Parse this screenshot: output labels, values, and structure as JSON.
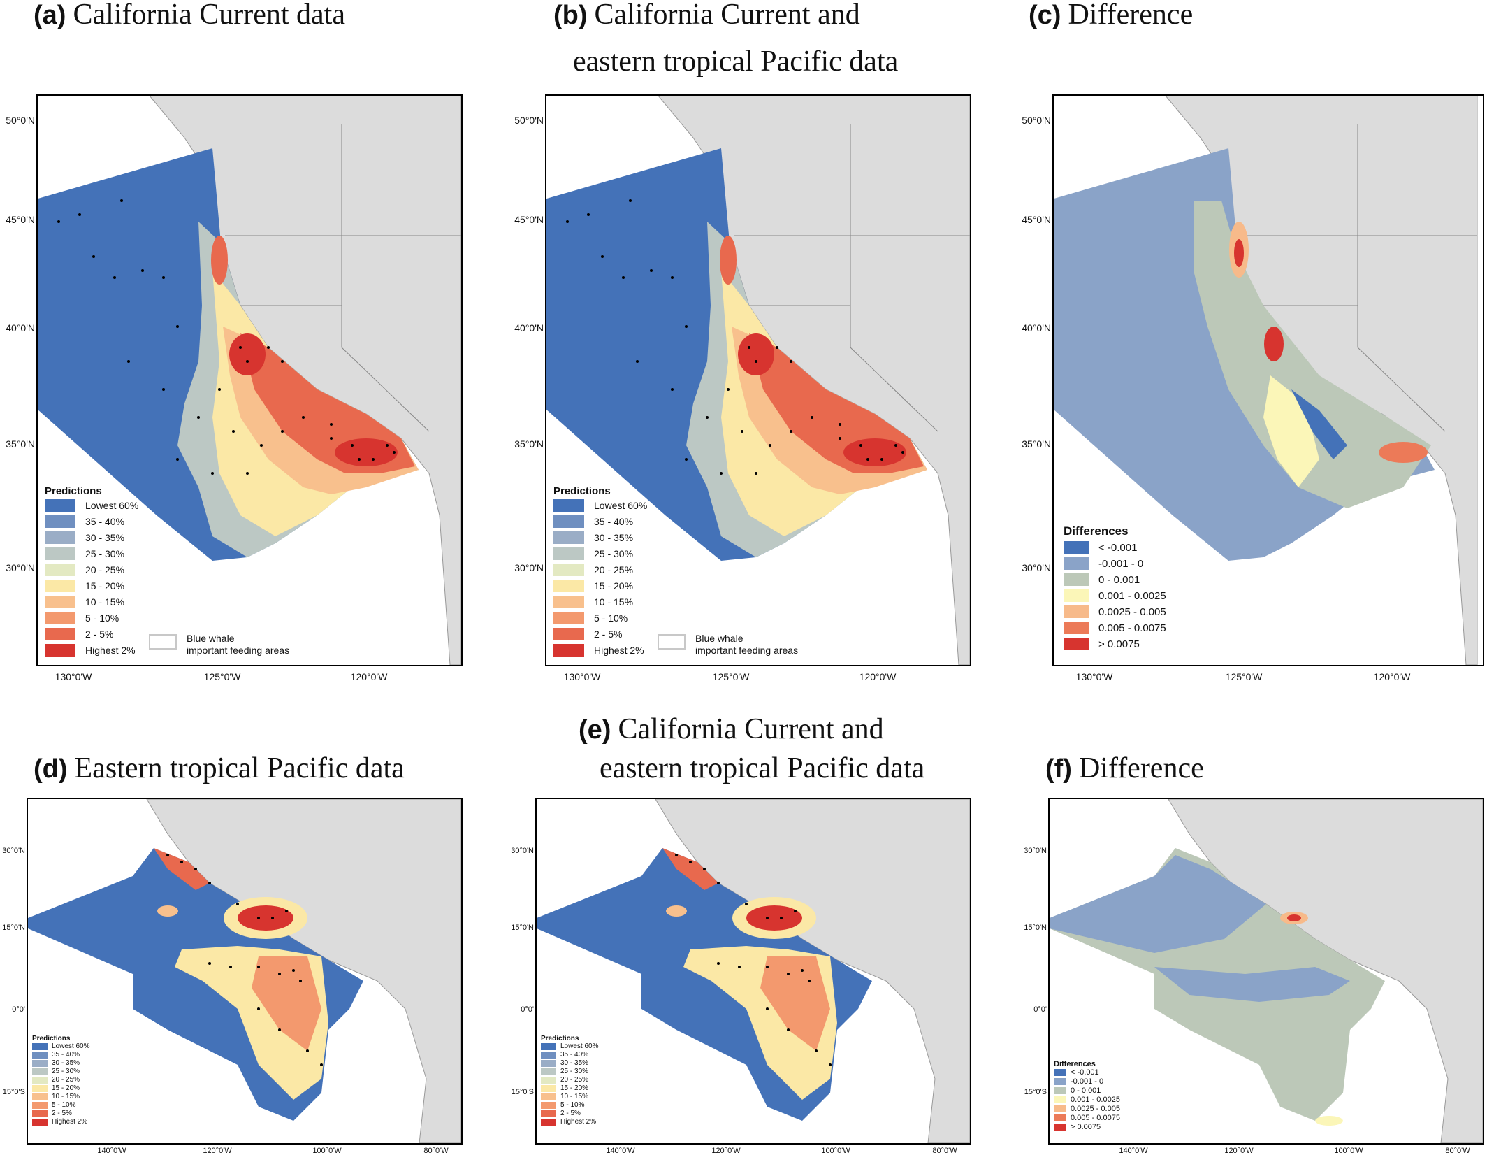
{
  "colors": {
    "land": "#dcdcdc",
    "ocean": "#ffffff",
    "pred": [
      "#4472b8",
      "#6f8fc0",
      "#9aadc6",
      "#bcc8c4",
      "#e3e9c2",
      "#fbe8a6",
      "#f8c08d",
      "#f3996e",
      "#e8694e",
      "#d7342f"
    ],
    "diff": [
      "#4472b8",
      "#8aa3c8",
      "#bcc8b8",
      "#fbf6b8",
      "#f7ba8a",
      "#ec7a58",
      "#d7342f"
    ]
  },
  "panels": {
    "a": {
      "tag": "(a)",
      "title": [
        "California Current data"
      ]
    },
    "b": {
      "tag": "(b)",
      "title": [
        "California Current and",
        "eastern tropical Pacific data"
      ]
    },
    "c": {
      "tag": "(c)",
      "title": [
        "Difference"
      ]
    },
    "d": {
      "tag": "(d)",
      "title": [
        "Eastern tropical Pacific data"
      ]
    },
    "e": {
      "tag": "(e)",
      "title": [
        "California Current and",
        "eastern tropical Pacific data"
      ]
    },
    "f": {
      "tag": "(f)",
      "title": [
        "Difference"
      ]
    }
  },
  "axes": {
    "top_lat": [
      "50°0'N",
      "45°0'N",
      "40°0'N",
      "35°0'N",
      "30°0'N"
    ],
    "top_lon": [
      "130°0'W",
      "125°0'W",
      "120°0'W"
    ],
    "bot_lat": [
      "30°0'N",
      "15°0'N",
      "0°0'",
      "15°0'S"
    ],
    "bot_lon": [
      "140°0'W",
      "120°0'W",
      "100°0'W",
      "80°0'W"
    ]
  },
  "legend_predictions": {
    "title": "Predictions",
    "items": [
      "Lowest 60%",
      "35 - 40%",
      "30 - 35%",
      "25 - 30%",
      "20 - 25%",
      "15 - 20%",
      "10 - 15%",
      "5 - 10%",
      "2 - 5%",
      "Highest 2%"
    ]
  },
  "legend_differences": {
    "title": "Differences",
    "items": [
      "< -0.001",
      "-0.001 - 0",
      "0 - 0.001",
      "0.001 - 0.0025",
      "0.0025 - 0.005",
      "0.005 - 0.0075",
      "> 0.0075"
    ]
  },
  "whale_legend": [
    "Blue whale",
    "important feeding areas"
  ]
}
